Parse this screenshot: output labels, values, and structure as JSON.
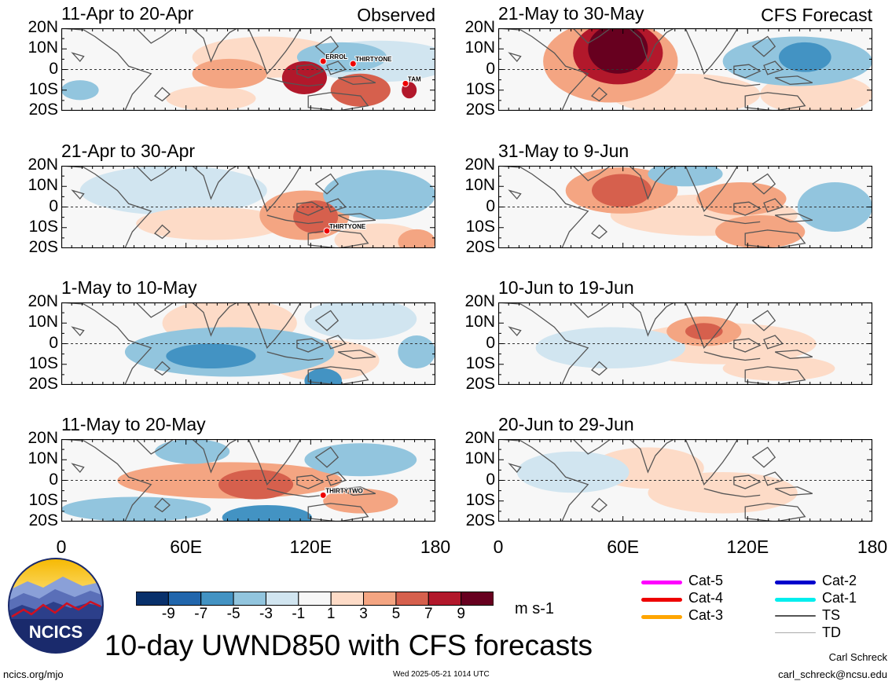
{
  "chart_data": {
    "type": "heatmap",
    "title": "10-day UWND850 with CFS forecasts",
    "units": "m s-1",
    "column_headers": {
      "left": "Observed",
      "right": "CFS Forecast"
    },
    "y_ticks": [
      "20N",
      "10N",
      "0",
      "10S",
      "20S"
    ],
    "x_ticks": [
      "0",
      "60E",
      "120E",
      "180"
    ],
    "colorbar_ticks": [
      "-9",
      "-7",
      "-5",
      "-3",
      "-1",
      "1",
      "3",
      "5",
      "7",
      "9"
    ],
    "colorbar_colors": [
      "#08306b",
      "#2166ac",
      "#4393c3",
      "#92c5de",
      "#d1e5f0",
      "#f7f7f7",
      "#fddbc7",
      "#f4a582",
      "#d6604d",
      "#b2182b",
      "#67001f"
    ],
    "panels": [
      {
        "title": "11-Apr to 20-Apr",
        "source": "Observed",
        "storms": [
          "ERROL",
          "THIRTYONE",
          "TAM"
        ]
      },
      {
        "title": "21-Apr to 30-Apr",
        "source": "Observed",
        "storms": [
          "THIRTYONE"
        ]
      },
      {
        "title": "1-May to 10-May",
        "source": "Observed",
        "storms": []
      },
      {
        "title": "11-May to 20-May",
        "source": "Observed",
        "storms": [
          "THIRTYTWO"
        ]
      },
      {
        "title": "21-May to 30-May",
        "source": "CFS Forecast",
        "storms": []
      },
      {
        "title": "31-May to 9-Jun",
        "source": "CFS Forecast",
        "storms": []
      },
      {
        "title": "10-Jun to 19-Jun",
        "source": "CFS Forecast",
        "storms": []
      },
      {
        "title": "20-Jun to 29-Jun",
        "source": "CFS Forecast",
        "storms": []
      }
    ],
    "storm_legend": [
      {
        "label": "Cat-5",
        "color": "#ff00ff"
      },
      {
        "label": "Cat-4",
        "color": "#ee0000"
      },
      {
        "label": "Cat-3",
        "color": "#ffa500"
      },
      {
        "label": "Cat-2",
        "color": "#0000cc"
      },
      {
        "label": "Cat-1",
        "color": "#00eeee"
      },
      {
        "label": "TS",
        "color": "#555555"
      },
      {
        "label": "TD",
        "color": "#aaaaaa"
      }
    ]
  },
  "logo_text": "NCICS",
  "footer": {
    "left": "ncics.org/mjo",
    "center": "Wed 2025-05-21 1014 UTC",
    "author": "Carl Schreck",
    "email": "carl_schreck@ncsu.edu"
  }
}
